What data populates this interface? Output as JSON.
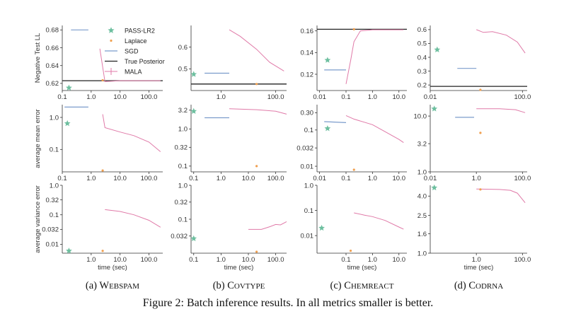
{
  "figure_caption": "Figure 2: Batch inference results. In all metrics smaller is better.",
  "colors": {
    "pass": "#6dbf9f",
    "laplace": "#f0a050",
    "sgd": "#7b9ccc",
    "true": "#222222",
    "mala": "#e07aa8"
  },
  "legend": {
    "pass": "PASS-LR2",
    "laplace": "Laplace",
    "sgd": "SGD",
    "true": "True Posterior",
    "mala": "MALA"
  },
  "ylabels": [
    "Negative Test LL",
    "average mean error",
    "average variance error"
  ],
  "xlabel": "time (sec)",
  "captions": [
    {
      "prefix": "(a) ",
      "first": "W",
      "rest": "EBSPAM"
    },
    {
      "prefix": "(b) ",
      "first": "C",
      "rest": "OVTYPE"
    },
    {
      "prefix": "(c) ",
      "first": "C",
      "rest": "HEMREACT"
    },
    {
      "prefix": "(d) ",
      "first": "C",
      "rest": "ODRNA"
    }
  ],
  "chart_data": [
    {
      "id": "a0",
      "type": "line",
      "xscale": "log",
      "yscale": "linear",
      "xlim": [
        0.1,
        300
      ],
      "ylim": [
        0.612,
        0.685
      ],
      "xticks": [
        0.1,
        1,
        10,
        100
      ],
      "xtick_labels": [
        "0.1",
        "1.0",
        "10.0",
        "100.0"
      ],
      "yticks": [
        0.62,
        0.64,
        0.66,
        0.68
      ],
      "ytick_labels": [
        "0.62",
        "0.64",
        "0.66",
        "0.68"
      ],
      "pass": [
        0.17,
        0.615
      ],
      "laplace": [
        2.5,
        0.6235
      ],
      "sgd": [
        [
          0.2,
          0.68
        ],
        [
          0.8,
          0.68
        ]
      ],
      "true": 0.623,
      "mala": [
        [
          2.0,
          0.659
        ],
        [
          3.0,
          0.622
        ],
        [
          10,
          0.623
        ],
        [
          100,
          0.623
        ],
        [
          250,
          0.623
        ]
      ]
    },
    {
      "id": "a1",
      "type": "line",
      "xscale": "log",
      "yscale": "log",
      "xlim": [
        0.1,
        300
      ],
      "ylim": [
        0.02,
        2.5
      ],
      "xticks": [
        0.1,
        1,
        10,
        100
      ],
      "xtick_labels": [
        "0.1",
        "1.0",
        "10.0",
        "100.0"
      ],
      "yticks": [
        0.1,
        1.0
      ],
      "ytick_labels": [
        "0.1",
        "1.0"
      ],
      "pass": [
        0.15,
        0.65
      ],
      "laplace": [
        2.5,
        0.022
      ],
      "sgd": [
        [
          0.12,
          2.1
        ],
        [
          0.8,
          2.1
        ]
      ],
      "mala": [
        [
          2.5,
          1.25
        ],
        [
          3.0,
          0.48
        ],
        [
          10,
          0.35
        ],
        [
          30,
          0.27
        ],
        [
          100,
          0.17
        ],
        [
          250,
          0.085
        ]
      ]
    },
    {
      "id": "a2",
      "type": "line",
      "xscale": "log",
      "yscale": "log",
      "xlim": [
        0.1,
        300
      ],
      "ylim": [
        0.005,
        1.0
      ],
      "xticks": [
        1,
        10,
        100
      ],
      "xtick_labels": [
        "1.0",
        "10.0",
        "100.0"
      ],
      "yticks": [
        0.01,
        0.032,
        0.1,
        0.32,
        1.0
      ],
      "ytick_labels": [
        "0.01",
        "0.032",
        "0.1",
        "0.32",
        "1.0"
      ],
      "pass": [
        0.17,
        0.006
      ],
      "laplace": [
        2.5,
        0.006
      ],
      "mala": [
        [
          3.0,
          0.15
        ],
        [
          10,
          0.13
        ],
        [
          30,
          0.1
        ],
        [
          100,
          0.065
        ],
        [
          250,
          0.038
        ]
      ]
    },
    {
      "id": "b0",
      "type": "line",
      "xscale": "log",
      "yscale": "linear",
      "xlim": [
        0.08,
        250
      ],
      "ylim": [
        0.4,
        0.7
      ],
      "xticks": [
        1,
        100
      ],
      "xtick_labels": [
        "1.0",
        "100.0"
      ],
      "yticks": [
        0.5,
        0.6
      ],
      "ytick_labels": [
        "0.5",
        "0.6"
      ],
      "pass": [
        0.1,
        0.475
      ],
      "laplace": [
        20,
        0.43
      ],
      "sgd": [
        [
          0.25,
          0.48
        ],
        [
          2.0,
          0.48
        ]
      ],
      "true": 0.43,
      "mala": [
        [
          2.0,
          0.68
        ],
        [
          5,
          0.65
        ],
        [
          20,
          0.59
        ],
        [
          60,
          0.53
        ],
        [
          200,
          0.49
        ]
      ]
    },
    {
      "id": "b1",
      "type": "line",
      "xscale": "log",
      "yscale": "log",
      "xlim": [
        0.08,
        250
      ],
      "ylim": [
        0.07,
        4.5
      ],
      "xticks": [
        0.1,
        1,
        10,
        100
      ],
      "xtick_labels": [
        "0.1",
        "1.0",
        "10.0",
        "100.0"
      ],
      "yticks": [
        0.1,
        0.32,
        1.0,
        3.2
      ],
      "ytick_labels": [
        "0.1",
        "0.32",
        "1.0",
        "3.2"
      ],
      "pass": [
        0.1,
        3.0
      ],
      "laplace": [
        20,
        0.1
      ],
      "sgd": [
        [
          0.25,
          2.0
        ],
        [
          2.0,
          2.0
        ]
      ],
      "mala": [
        [
          2.0,
          3.5
        ],
        [
          20,
          3.3
        ],
        [
          100,
          3.0
        ],
        [
          250,
          2.5
        ]
      ]
    },
    {
      "id": "b2",
      "type": "line",
      "xscale": "log",
      "yscale": "log",
      "xlim": [
        0.08,
        250
      ],
      "ylim": [
        0.01,
        1.0
      ],
      "xticks": [
        0.1,
        1,
        10,
        100
      ],
      "xtick_labels": [
        "0.1",
        "1.0",
        "10.0",
        "100.0"
      ],
      "yticks": [
        0.032,
        0.1,
        0.32,
        1.0
      ],
      "ytick_labels": [
        "0.032",
        "0.1",
        "0.32",
        "1.0"
      ],
      "pass": [
        0.1,
        0.027
      ],
      "laplace": [
        20,
        0.011
      ],
      "mala": [
        [
          10,
          0.05
        ],
        [
          30,
          0.05
        ],
        [
          60,
          0.06
        ],
        [
          100,
          0.07
        ],
        [
          150,
          0.068
        ],
        [
          250,
          0.085
        ]
      ]
    },
    {
      "id": "c0",
      "type": "line",
      "xscale": "log",
      "yscale": "linear",
      "xlim": [
        0.008,
        20
      ],
      "ylim": [
        0.105,
        0.165
      ],
      "xticks": [
        0.01,
        0.1,
        1,
        10
      ],
      "xtick_labels": [
        "0.01",
        "0.1",
        "1.0",
        "10.0"
      ],
      "yticks": [
        0.12,
        0.14,
        0.16
      ],
      "ytick_labels": [
        "0.12",
        "0.14",
        "0.16"
      ],
      "pass": [
        0.02,
        0.133
      ],
      "laplace": [
        0.2,
        0.1615
      ],
      "sgd": [
        [
          0.015,
          0.124
        ],
        [
          0.1,
          0.124
        ]
      ],
      "true": 0.1615,
      "mala": [
        [
          0.1,
          0.111
        ],
        [
          0.15,
          0.133
        ],
        [
          0.2,
          0.15
        ],
        [
          0.35,
          0.16
        ],
        [
          1.0,
          0.161
        ],
        [
          3.0,
          0.161
        ],
        [
          15,
          0.161
        ]
      ]
    },
    {
      "id": "c1",
      "type": "line",
      "xscale": "log",
      "yscale": "log",
      "xlim": [
        0.008,
        20
      ],
      "ylim": [
        0.007,
        0.5
      ],
      "xticks": [
        0.01,
        0.1,
        1,
        10
      ],
      "xtick_labels": [
        "0.01",
        "0.1",
        "1.0",
        "10.0"
      ],
      "yticks": [
        0.01,
        0.032,
        0.1,
        0.3
      ],
      "ytick_labels": [
        "0.01",
        "0.032",
        "0.1",
        "0.30"
      ],
      "pass": [
        0.02,
        0.11
      ],
      "laplace": [
        0.2,
        0.008
      ],
      "sgd": [
        [
          0.015,
          0.17
        ],
        [
          0.1,
          0.16
        ]
      ],
      "mala": [
        [
          0.1,
          0.25
        ],
        [
          0.2,
          0.2
        ],
        [
          1.0,
          0.14
        ],
        [
          3.0,
          0.09
        ],
        [
          10,
          0.055
        ],
        [
          15,
          0.045
        ]
      ]
    },
    {
      "id": "c2",
      "type": "line",
      "xscale": "log",
      "yscale": "log",
      "xlim": [
        0.008,
        20
      ],
      "ylim": [
        0.002,
        1.0
      ],
      "xticks": [
        0.1,
        1,
        10
      ],
      "xtick_labels": [
        "0.1",
        "1.0",
        "10.0"
      ],
      "yticks": [
        0.01,
        0.1,
        1.0
      ],
      "ytick_labels": [
        "0.01",
        "0.1",
        "1.0"
      ],
      "pass": [
        0.012,
        0.02
      ],
      "laplace": [
        0.15,
        0.0025
      ],
      "mala": [
        [
          0.2,
          0.08
        ],
        [
          0.5,
          0.065
        ],
        [
          1.0,
          0.057
        ],
        [
          3.0,
          0.04
        ],
        [
          10,
          0.022
        ],
        [
          15,
          0.018
        ]
      ]
    },
    {
      "id": "d0",
      "type": "line",
      "xscale": "log",
      "yscale": "linear",
      "xlim": [
        0.01,
        160
      ],
      "ylim": [
        0.16,
        0.63
      ],
      "xticks": [
        0.01,
        100
      ],
      "xtick_labels": [
        "0.01",
        "100.0"
      ],
      "yticks": [
        0.2,
        0.3,
        0.4,
        0.5,
        0.6
      ],
      "ytick_labels": [
        "0.2",
        "0.3",
        "0.4",
        "0.5",
        "0.6"
      ],
      "pass": [
        0.02,
        0.455
      ],
      "laplace": [
        1.5,
        0.165
      ],
      "sgd": [
        [
          0.15,
          0.32
        ],
        [
          1.0,
          0.32
        ]
      ],
      "true": 0.19,
      "mala": [
        [
          1.0,
          0.6
        ],
        [
          2.0,
          0.58
        ],
        [
          5,
          0.585
        ],
        [
          20,
          0.56
        ],
        [
          60,
          0.51
        ],
        [
          130,
          0.43
        ]
      ]
    },
    {
      "id": "d1",
      "type": "line",
      "xscale": "log",
      "yscale": "log",
      "xlim": [
        0.01,
        160
      ],
      "ylim": [
        1.0,
        16
      ],
      "xticks": [
        0.01,
        1,
        100
      ],
      "xtick_labels": [
        "0.01",
        "1.0",
        "100.0"
      ],
      "yticks": [
        1.0,
        3.2,
        10.0
      ],
      "ytick_labels": [
        "1.0",
        "3.2",
        "10.0"
      ],
      "pass": [
        0.015,
        13.5
      ],
      "laplace": [
        1.5,
        5.0
      ],
      "sgd": [
        [
          0.12,
          9.5
        ],
        [
          0.8,
          9.5
        ]
      ],
      "mala": [
        [
          1.0,
          13.5
        ],
        [
          10,
          13.5
        ],
        [
          50,
          13.0
        ],
        [
          130,
          11.5
        ]
      ]
    },
    {
      "id": "d2",
      "type": "line",
      "xscale": "log",
      "yscale": "log",
      "xlim": [
        0.01,
        160
      ],
      "ylim": [
        1.0,
        5.2
      ],
      "xticks": [
        1,
        100
      ],
      "xtick_labels": [
        "1.0",
        "100.0"
      ],
      "yticks": [
        1.0,
        1.6,
        2.5,
        4.0
      ],
      "ytick_labels": [
        "1.0",
        "1.6",
        "2.5",
        "4.0"
      ],
      "pass": [
        0.015,
        4.9
      ],
      "laplace": [
        1.5,
        4.7
      ],
      "mala": [
        [
          1.0,
          4.75
        ],
        [
          10,
          4.7
        ],
        [
          30,
          4.6
        ],
        [
          60,
          4.3
        ],
        [
          130,
          3.4
        ]
      ]
    }
  ]
}
